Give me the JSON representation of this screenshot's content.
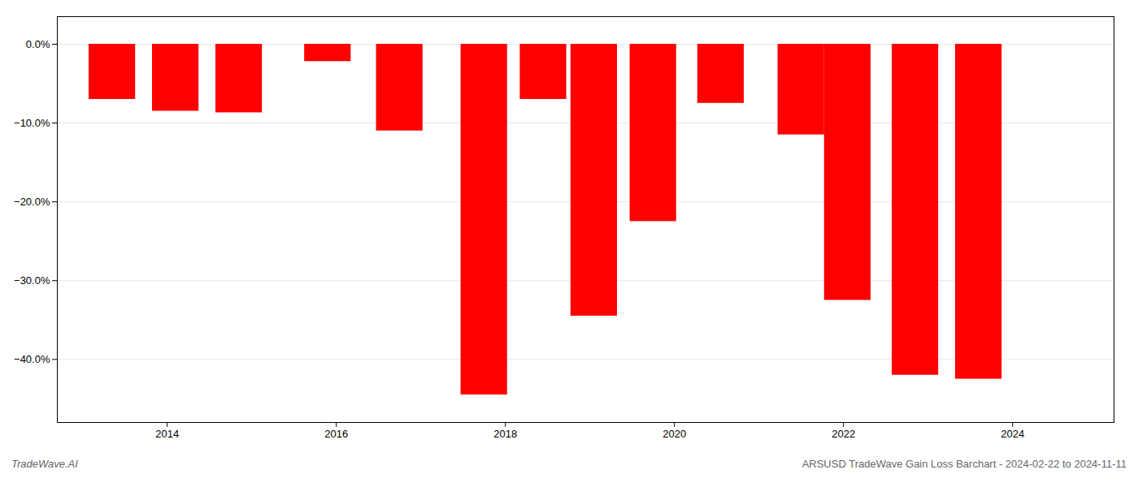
{
  "chart_data": {
    "type": "bar",
    "x": [
      2013.35,
      2014.1,
      2014.85,
      2015.9,
      2016.75,
      2017.75,
      2018.45,
      2019.05,
      2019.75,
      2020.55,
      2021.5,
      2022.05,
      2022.85,
      2023.6
    ],
    "values": [
      -7.0,
      -8.5,
      -8.7,
      -2.2,
      -11.0,
      -44.5,
      -7.0,
      -34.5,
      -22.5,
      -7.5,
      -11.5,
      -32.5,
      -42.0,
      -42.5
    ],
    "color": "#ff0000",
    "xlim": [
      2012.7,
      2025.2
    ],
    "xticks": [
      2014,
      2016,
      2018,
      2020,
      2022,
      2024
    ],
    "ylim": [
      -48,
      3.5
    ],
    "yticks": [
      {
        "value": 0.0,
        "label": "0.0%"
      },
      {
        "value": -10.0,
        "label": "−10.0%"
      },
      {
        "value": -20.0,
        "label": "−20.0%"
      },
      {
        "value": -30.0,
        "label": "−30.0%"
      },
      {
        "value": -40.0,
        "label": "−40.0%"
      }
    ],
    "grid": true,
    "annotations": [
      "TradeWave.AI",
      "ARSUSD TradeWave Gain Loss Barchart - 2024-02-22 to 2024-11-11"
    ]
  }
}
